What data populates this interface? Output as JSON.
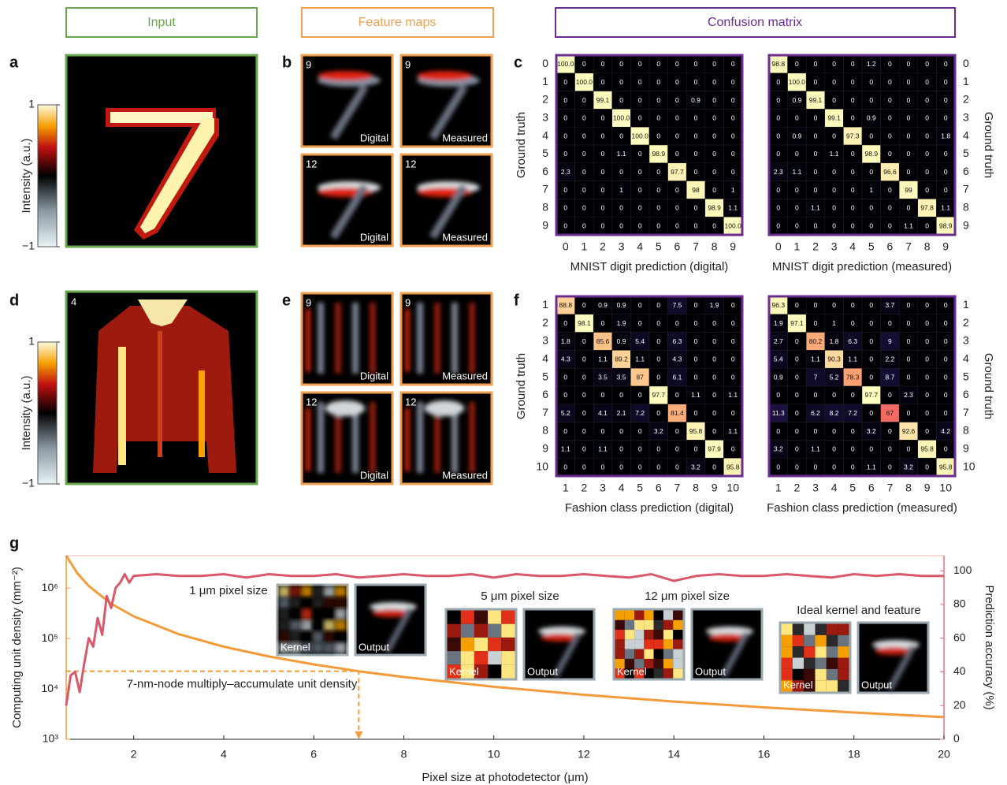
{
  "headers": {
    "input": "Input",
    "feature_maps": "Feature maps",
    "confusion_matrix": "Confusion matrix"
  },
  "panel_labels": [
    "a",
    "b",
    "c",
    "d",
    "e",
    "f",
    "g"
  ],
  "colorbar": {
    "label": "Intensity (a.u.)",
    "ticks": [
      1,
      {
        "value": -1,
        "label": "−1"
      }
    ]
  },
  "input_d_label": "4",
  "feature_maps": {
    "channels": [
      "9",
      "12"
    ],
    "modes": [
      "Digital",
      "Measured"
    ]
  },
  "chart_data": [
    {
      "type": "heatmap",
      "xlabel": "MNIST digit prediction (digital)",
      "ylabel": "Ground truth",
      "categories": [
        "0",
        "1",
        "2",
        "3",
        "4",
        "5",
        "6",
        "7",
        "8",
        "9"
      ],
      "rows": [
        "0",
        "1",
        "2",
        "3",
        "4",
        "5",
        "6",
        "7",
        "8",
        "9"
      ],
      "values": [
        [
          100,
          0,
          0,
          0,
          0,
          0,
          0,
          0,
          0,
          0
        ],
        [
          0,
          100,
          0,
          0,
          0,
          0,
          0,
          0,
          0,
          0
        ],
        [
          0,
          0,
          99.1,
          0,
          0,
          0,
          0,
          0.9,
          0,
          0
        ],
        [
          0,
          0,
          0,
          100,
          0,
          0,
          0,
          0,
          0,
          0
        ],
        [
          0,
          0,
          0,
          0,
          100,
          0,
          0,
          0,
          0,
          0
        ],
        [
          0,
          0,
          0,
          1.1,
          0,
          98.9,
          0,
          0,
          0,
          0
        ],
        [
          2.3,
          0,
          0,
          0,
          0,
          0,
          97.7,
          0,
          0,
          0
        ],
        [
          0,
          0,
          0,
          1,
          0,
          0,
          0,
          98,
          0,
          1
        ],
        [
          0,
          0,
          0,
          0,
          0,
          0,
          0,
          0,
          98.9,
          1.1
        ],
        [
          0,
          0,
          0,
          0,
          0,
          0,
          0,
          0,
          0,
          100
        ]
      ],
      "value_labels": [
        [
          "100.0",
          "0",
          "0",
          "0",
          "0",
          "0",
          "0",
          "0",
          "0",
          "0"
        ],
        [
          "0",
          "100.0",
          "0",
          "0",
          "0",
          "0",
          "0",
          "0",
          "0",
          "0"
        ],
        [
          "0",
          "0",
          "99.1",
          "0",
          "0",
          "0",
          "0",
          "0.9",
          "0",
          "0"
        ],
        [
          "0",
          "0",
          "0",
          "100.0",
          "0",
          "0",
          "0",
          "0",
          "0",
          "0"
        ],
        [
          "0",
          "0",
          "0",
          "0",
          "100.0",
          "0",
          "0",
          "0",
          "0",
          "0"
        ],
        [
          "0",
          "0",
          "0",
          "1.1",
          "0",
          "98.9",
          "0",
          "0",
          "0",
          "0"
        ],
        [
          "2.3",
          "0",
          "0",
          "0",
          "0",
          "0",
          "97.7",
          "0",
          "0",
          "0"
        ],
        [
          "0",
          "0",
          "0",
          "1",
          "0",
          "0",
          "0",
          "98",
          "0",
          "1"
        ],
        [
          "0",
          "0",
          "0",
          "0",
          "0",
          "0",
          "0",
          "0",
          "98.9",
          "1.1"
        ],
        [
          "0",
          "0",
          "0",
          "0",
          "0",
          "0",
          "0",
          "0",
          "0",
          "100.0"
        ]
      ]
    },
    {
      "type": "heatmap",
      "xlabel": "MNIST digit prediction (measured)",
      "ylabel": "Ground truth",
      "categories": [
        "0",
        "1",
        "2",
        "3",
        "4",
        "5",
        "6",
        "7",
        "8",
        "9"
      ],
      "rows": [
        "0",
        "1",
        "2",
        "3",
        "4",
        "5",
        "6",
        "7",
        "8",
        "9"
      ],
      "values": [
        [
          98.8,
          0,
          0,
          0,
          0,
          1.2,
          0,
          0,
          0,
          0
        ],
        [
          0,
          100,
          0,
          0,
          0,
          0,
          0,
          0,
          0,
          0
        ],
        [
          0,
          0.9,
          99.1,
          0,
          0,
          0,
          0,
          0,
          0,
          0
        ],
        [
          0,
          0,
          0,
          99.1,
          0,
          0.9,
          0,
          0,
          0,
          0
        ],
        [
          0,
          0.9,
          0,
          0,
          97.3,
          0,
          0,
          0,
          0,
          1.8
        ],
        [
          0,
          0,
          0,
          1.1,
          0,
          98.9,
          0,
          0,
          0,
          0
        ],
        [
          2.3,
          1.1,
          0,
          0,
          0,
          0,
          96.6,
          0,
          0,
          0
        ],
        [
          0,
          0,
          0,
          0,
          0,
          1,
          0,
          99,
          0,
          0
        ],
        [
          0,
          0,
          1.1,
          0,
          0,
          0,
          0,
          0,
          97.8,
          1.1
        ],
        [
          0,
          0,
          0,
          0,
          0,
          0,
          0,
          1.1,
          0,
          98.9
        ]
      ],
      "value_labels": [
        [
          "98.8",
          "0",
          "0",
          "0",
          "0",
          "1.2",
          "0",
          "0",
          "0",
          "0"
        ],
        [
          "0",
          "100.0",
          "0",
          "0",
          "0",
          "0",
          "0",
          "0",
          "0",
          "0"
        ],
        [
          "0",
          "0.9",
          "99.1",
          "0",
          "0",
          "0",
          "0",
          "0",
          "0",
          "0"
        ],
        [
          "0",
          "0",
          "0",
          "99.1",
          "0",
          "0.9",
          "0",
          "0",
          "0",
          "0"
        ],
        [
          "0",
          "0.9",
          "0",
          "0",
          "97.3",
          "0",
          "0",
          "0",
          "0",
          "1.8"
        ],
        [
          "0",
          "0",
          "0",
          "1.1",
          "0",
          "98.9",
          "0",
          "0",
          "0",
          "0"
        ],
        [
          "2.3",
          "1.1",
          "0",
          "0",
          "0",
          "0",
          "96.6",
          "0",
          "0",
          "0"
        ],
        [
          "0",
          "0",
          "0",
          "0",
          "0",
          "1",
          "0",
          "99",
          "0",
          "0"
        ],
        [
          "0",
          "0",
          "1.1",
          "0",
          "0",
          "0",
          "0",
          "0",
          "97.8",
          "1.1"
        ],
        [
          "0",
          "0",
          "0",
          "0",
          "0",
          "0",
          "0",
          "1.1",
          "0",
          "98.9"
        ]
      ]
    },
    {
      "type": "heatmap",
      "xlabel": "Fashion class prediction (digital)",
      "ylabel": "Ground truth",
      "categories": [
        "1",
        "2",
        "3",
        "4",
        "5",
        "6",
        "7",
        "8",
        "9",
        "10"
      ],
      "rows": [
        "1",
        "2",
        "3",
        "4",
        "5",
        "6",
        "7",
        "8",
        "9",
        "10"
      ],
      "values": [
        [
          88.8,
          0,
          0.9,
          0.9,
          0,
          0,
          7.5,
          0,
          1.9,
          0
        ],
        [
          0,
          98.1,
          0,
          1.9,
          0,
          0,
          0,
          0,
          0,
          0
        ],
        [
          1.8,
          0,
          85.6,
          0.9,
          5.4,
          0,
          6.3,
          0,
          0,
          0
        ],
        [
          4.3,
          0,
          1.1,
          89.2,
          1.1,
          0,
          4.3,
          0,
          0,
          0
        ],
        [
          0,
          0,
          3.5,
          3.5,
          87,
          0,
          6.1,
          0,
          0,
          0
        ],
        [
          0,
          0,
          0,
          0,
          0,
          97.7,
          0,
          1.1,
          0,
          1.1
        ],
        [
          5.2,
          0,
          4.1,
          2.1,
          7.2,
          0,
          81.4,
          0,
          0,
          0
        ],
        [
          0,
          0,
          0,
          0,
          0,
          3.2,
          0,
          95.8,
          0,
          1.1
        ],
        [
          1.1,
          0,
          1.1,
          0,
          0,
          0,
          0,
          0,
          97.9,
          0
        ],
        [
          0,
          0,
          0,
          0,
          0,
          0,
          0,
          3.2,
          0,
          95.8
        ]
      ]
    },
    {
      "type": "heatmap",
      "xlabel": "Fashion class prediction (measured)",
      "ylabel": "Ground truth",
      "categories": [
        "1",
        "2",
        "3",
        "4",
        "5",
        "6",
        "7",
        "8",
        "9",
        "10"
      ],
      "rows": [
        "1",
        "2",
        "3",
        "4",
        "5",
        "6",
        "7",
        "8",
        "9",
        "10"
      ],
      "values": [
        [
          96.3,
          0,
          0,
          0,
          0,
          0,
          3.7,
          0,
          0,
          0
        ],
        [
          1.9,
          97.1,
          0,
          1,
          0,
          0,
          0,
          0,
          0,
          0
        ],
        [
          2.7,
          0,
          80.2,
          1.8,
          6.3,
          0,
          9,
          0,
          0,
          0
        ],
        [
          5.4,
          0,
          1.1,
          90.3,
          1.1,
          0,
          2.2,
          0,
          0,
          0
        ],
        [
          0.9,
          0,
          7,
          5.2,
          78.3,
          0,
          8.7,
          0,
          0,
          0
        ],
        [
          0,
          0,
          0,
          0,
          0,
          97.7,
          0,
          2.3,
          0,
          0
        ],
        [
          11.3,
          0,
          6.2,
          8.2,
          7.2,
          0,
          67,
          0,
          0,
          0
        ],
        [
          0,
          0,
          0,
          0,
          0,
          3.2,
          0,
          92.6,
          0,
          4.2
        ],
        [
          3.2,
          0,
          1.1,
          0,
          0,
          0,
          0,
          0,
          95.8,
          0
        ],
        [
          0,
          0,
          0,
          0,
          0,
          1.1,
          0,
          3.2,
          0,
          95.8
        ]
      ]
    },
    {
      "type": "line",
      "xlabel": "Pixel size at photodetector (μm)",
      "ylabel": "Computing unit density (mm⁻²)",
      "y2label": "Prediction accuracy (%)",
      "xlim": [
        0.5,
        20
      ],
      "xticks": [
        2,
        4,
        6,
        8,
        10,
        12,
        14,
        16,
        18,
        20
      ],
      "ylim": [
        1000,
        4400000
      ],
      "log_y": true,
      "yticks": [
        {
          "value": 1000,
          "label": "10³"
        },
        {
          "value": 10000,
          "label": "10⁴"
        },
        {
          "value": 100000,
          "label": "10⁵"
        },
        {
          "value": 1000000,
          "label": "10⁶"
        }
      ],
      "y2lim": [
        0,
        109
      ],
      "y2ticks": [
        0,
        20,
        40,
        60,
        80,
        100
      ],
      "series": [
        {
          "color": "#f39a3a",
          "x": [
            0.5,
            0.75,
            1,
            1.5,
            2,
            3,
            4,
            5,
            6,
            7,
            8,
            10,
            12,
            14,
            16,
            18,
            20
          ],
          "values": [
            4400000,
            1960000,
            1100000,
            489000,
            275000,
            122000,
            68800,
            44000,
            30600,
            22400,
            17200,
            11000,
            7640,
            5610,
            4300,
            3400,
            2750
          ]
        },
        {
          "color": "#d9596a",
          "axis": "y2",
          "x": [
            0.5,
            0.6,
            0.7,
            0.8,
            0.9,
            1.0,
            1.1,
            1.2,
            1.3,
            1.4,
            1.5,
            1.6,
            1.7,
            1.8,
            1.9,
            2.0,
            2.5,
            3,
            3.5,
            4,
            4.5,
            5,
            5.5,
            6,
            6.5,
            7,
            7.5,
            8,
            8.5,
            9,
            9.5,
            10,
            10.5,
            11,
            11.5,
            12,
            12.5,
            13,
            13.5,
            14,
            14.5,
            15,
            15.5,
            16,
            16.5,
            17,
            17.5,
            18,
            18.5,
            19,
            19.5,
            20
          ],
          "values": [
            20,
            38,
            40,
            28,
            45,
            60,
            55,
            72,
            62,
            85,
            78,
            90,
            93,
            98,
            93,
            97,
            98,
            97,
            97,
            98,
            96,
            98,
            97,
            97,
            98,
            96,
            97,
            98,
            97,
            97,
            98,
            96,
            98,
            97,
            97,
            98,
            97,
            96,
            98,
            94,
            97,
            98,
            97,
            97,
            98,
            97,
            96,
            98,
            97,
            98,
            97,
            97
          ]
        }
      ],
      "annotation": {
        "text": "7-nm-node multiply–accumulate unit density",
        "x": 7,
        "y": 22400
      },
      "insets": [
        "1 μm pixel size",
        "5 μm pixel size",
        "12 μm pixel size",
        "Ideal kernel and feature"
      ],
      "inset_labels": {
        "kernel": "Kernel",
        "output": "Output"
      }
    }
  ]
}
